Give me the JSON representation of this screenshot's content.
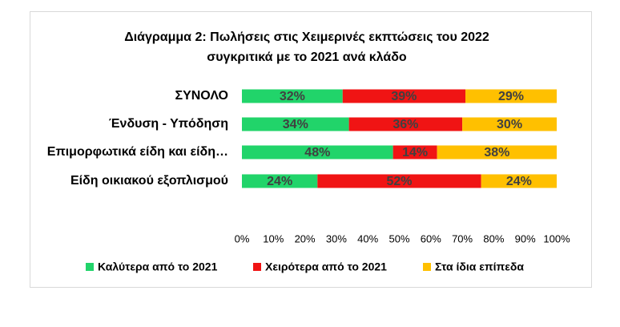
{
  "chart_data": {
    "type": "stacked-bar-horizontal",
    "title": [
      "Διάγραμμα 2: Πωλήσεις στις Χειμερινές εκπτώσεις του 2022",
      "συγκριτικά με το 2021 ανά κλάδο"
    ],
    "categories": [
      "ΣΥΝΟΛΟ",
      "Ένδυση - Υπόδηση",
      "Επιμορφωτικά είδη και είδη…",
      "Είδη οικιακού εξοπλισμού"
    ],
    "series": [
      {
        "name": "Καλύτερα από το 2021",
        "color": "#21d46a",
        "values": [
          32,
          34,
          48,
          24
        ],
        "value_labels": [
          "32%",
          "34%",
          "48%",
          "24%"
        ]
      },
      {
        "name": "Χειρότερα από το 2021",
        "color": "#f01414",
        "values": [
          39,
          36,
          14,
          52
        ],
        "value_labels": [
          "39%",
          "36%",
          "14%",
          "52%"
        ]
      },
      {
        "name": "Στα ίδια επίπεδα",
        "color": "#ffc000",
        "values": [
          29,
          30,
          38,
          24
        ],
        "value_labels": [
          "29%",
          "30%",
          "38%",
          "24%"
        ]
      }
    ],
    "xlim": [
      0,
      100
    ],
    "xticks": [
      {
        "value": 0,
        "label": "0%"
      },
      {
        "value": 10,
        "label": "10%"
      },
      {
        "value": 20,
        "label": "20%"
      },
      {
        "value": 30,
        "label": "30%"
      },
      {
        "value": 40,
        "label": "40%"
      },
      {
        "value": 50,
        "label": "50%"
      },
      {
        "value": 60,
        "label": "60%"
      },
      {
        "value": 70,
        "label": "70%"
      },
      {
        "value": 80,
        "label": "80%"
      },
      {
        "value": 90,
        "label": "90%"
      },
      {
        "value": 100,
        "label": "100%"
      }
    ],
    "legend": "bottom"
  }
}
